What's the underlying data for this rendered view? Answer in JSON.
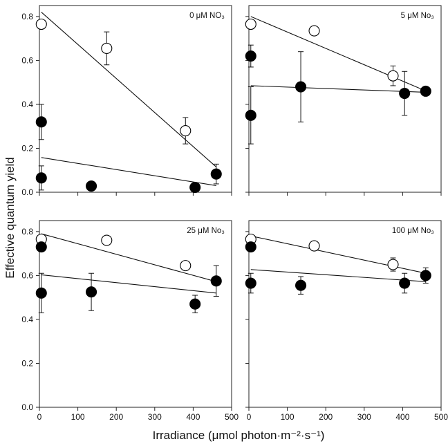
{
  "chart_data": {
    "type": "scatter",
    "xlabel": "Irradiance (μmol photon·m⁻²·s⁻¹)",
    "ylabel": "Effective quantum yield",
    "xlim": [
      0,
      500
    ],
    "ylim": [
      0,
      0.85
    ],
    "xticks": [
      0,
      100,
      200,
      300,
      400,
      500
    ],
    "yticks": [
      0.0,
      0.2,
      0.4,
      0.6,
      0.8
    ],
    "panels": [
      {
        "title": "0 μM NO₃",
        "series": [
          {
            "name": "open",
            "filled": false,
            "points": [
              {
                "x": 5,
                "y": 0.765,
                "err": null
              },
              {
                "x": 175,
                "y": 0.655,
                "err": 0.075
              },
              {
                "x": 380,
                "y": 0.28,
                "err": 0.06
              }
            ],
            "fit": [
              [
                5,
                0.82
              ],
              [
                460,
                0.115
              ]
            ]
          },
          {
            "name": "filled",
            "filled": true,
            "points": [
              {
                "x": 5,
                "y": 0.32,
                "err": 0.08
              },
              {
                "x": 5,
                "y": 0.065,
                "err": 0.055
              },
              {
                "x": 135,
                "y": 0.028,
                "err": 0.015
              },
              {
                "x": 405,
                "y": 0.022,
                "err": null
              },
              {
                "x": 460,
                "y": 0.083,
                "err": 0.045
              }
            ],
            "fit": [
              [
                5,
                0.158
              ],
              [
                460,
                0.03
              ]
            ]
          }
        ]
      },
      {
        "title": "5 μM No₃",
        "series": [
          {
            "name": "open",
            "filled": false,
            "points": [
              {
                "x": 5,
                "y": 0.765,
                "err": null
              },
              {
                "x": 170,
                "y": 0.735,
                "err": null
              },
              {
                "x": 375,
                "y": 0.53,
                "err": 0.045
              }
            ],
            "fit": [
              [
                5,
                0.8
              ],
              [
                455,
                0.465
              ]
            ]
          },
          {
            "name": "filled",
            "filled": true,
            "points": [
              {
                "x": 5,
                "y": 0.62,
                "err": 0.05
              },
              {
                "x": 5,
                "y": 0.35,
                "err": 0.13
              },
              {
                "x": 135,
                "y": 0.48,
                "err": 0.16
              },
              {
                "x": 405,
                "y": 0.45,
                "err": 0.1
              },
              {
                "x": 460,
                "y": 0.46,
                "err": null
              }
            ],
            "fit": [
              [
                5,
                0.485
              ],
              [
                460,
                0.455
              ]
            ]
          }
        ]
      },
      {
        "title": "25 μM No₃",
        "series": [
          {
            "name": "open",
            "filled": false,
            "points": [
              {
                "x": 5,
                "y": 0.765,
                "err": null
              },
              {
                "x": 175,
                "y": 0.76,
                "err": null
              },
              {
                "x": 380,
                "y": 0.645,
                "err": null
              }
            ],
            "fit": [
              [
                5,
                0.79
              ],
              [
                460,
                0.572
              ]
            ]
          },
          {
            "name": "filled",
            "filled": true,
            "points": [
              {
                "x": 5,
                "y": 0.73,
                "err": null
              },
              {
                "x": 5,
                "y": 0.52,
                "err": 0.09
              },
              {
                "x": 135,
                "y": 0.525,
                "err": 0.085
              },
              {
                "x": 405,
                "y": 0.47,
                "err": 0.04
              },
              {
                "x": 460,
                "y": 0.575,
                "err": 0.07
              }
            ],
            "fit": [
              [
                5,
                0.603
              ],
              [
                460,
                0.52
              ]
            ]
          }
        ]
      },
      {
        "title": "100 μM No₃",
        "series": [
          {
            "name": "open",
            "filled": false,
            "points": [
              {
                "x": 5,
                "y": 0.765,
                "err": null
              },
              {
                "x": 170,
                "y": 0.735,
                "err": null
              },
              {
                "x": 375,
                "y": 0.65,
                "err": 0.03
              }
            ],
            "fit": [
              [
                5,
                0.78
              ],
              [
                455,
                0.612
              ]
            ]
          },
          {
            "name": "filled",
            "filled": true,
            "points": [
              {
                "x": 5,
                "y": 0.73,
                "err": null
              },
              {
                "x": 5,
                "y": 0.565,
                "err": 0.045
              },
              {
                "x": 135,
                "y": 0.555,
                "err": 0.04
              },
              {
                "x": 405,
                "y": 0.565,
                "err": 0.045
              },
              {
                "x": 460,
                "y": 0.6,
                "err": 0.035
              }
            ],
            "fit": [
              [
                5,
                0.627
              ],
              [
                460,
                0.572
              ]
            ]
          }
        ]
      }
    ]
  }
}
